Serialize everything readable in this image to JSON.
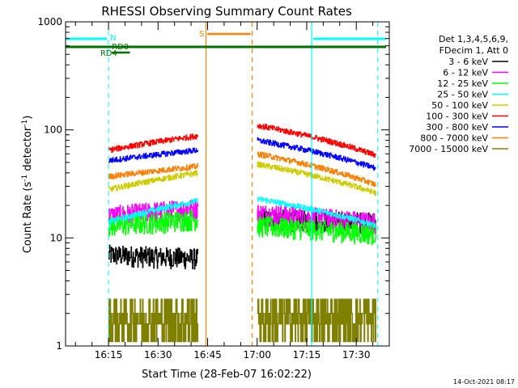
{
  "chart_data": {
    "type": "line",
    "title": "RHESSI Observing Summary Count Rates",
    "xlabel": "Start Time (28-Feb-07 16:02:22)",
    "ylabel_main": "Count Rate (s",
    "ylabel_exp1": "-1",
    "ylabel_mid": " detector",
    "ylabel_exp2": "-1",
    "ylabel_end": ")",
    "y_scale": "log",
    "ylim": [
      1,
      1000
    ],
    "xlim_minutes": [
      0,
      98
    ],
    "x_ticks": [
      {
        "t": 13,
        "label": "16:15"
      },
      {
        "t": 28,
        "label": "16:30"
      },
      {
        "t": 43,
        "label": "16:45"
      },
      {
        "t": 58,
        "label": "17:00"
      },
      {
        "t": 73,
        "label": "17:15"
      },
      {
        "t": 88,
        "label": "17:30"
      }
    ],
    "y_ticks": [
      {
        "v": 1,
        "label": "1"
      },
      {
        "v": 10,
        "label": "10"
      },
      {
        "v": 100,
        "label": "100"
      },
      {
        "v": 1000,
        "label": "1000"
      }
    ],
    "legend_header": [
      "Det 1,3,4,5,6,9,",
      "FDecim 1, Att 0"
    ],
    "series": [
      {
        "name": "3 - 6 keV",
        "color": "#000000"
      },
      {
        "name": "6 - 12 keV",
        "color": "#ff00ff"
      },
      {
        "name": "12 - 25 keV",
        "color": "#00ff00"
      },
      {
        "name": "25 - 50 keV",
        "color": "#00ffff"
      },
      {
        "name": "50 - 100 keV",
        "color": "#cccc00"
      },
      {
        "name": "100 - 300 keV",
        "color": "#ff0000"
      },
      {
        "name": "300 - 800 keV",
        "color": "#0000ff"
      },
      {
        "name": "800 - 7000 keV",
        "color": "#ff8000"
      },
      {
        "name": "7000 - 15000 keV",
        "color": "#808000"
      }
    ],
    "segments": [
      [
        13,
        40
      ],
      [
        58,
        94
      ]
    ],
    "night_intervals": [
      [
        42.5,
        56.5
      ]
    ],
    "saa_interval": [
      74.5,
      94.5
    ],
    "annotations": [
      {
        "label": "N",
        "color": "#00ffff"
      },
      {
        "label": "RD0",
        "color": "#007000"
      },
      {
        "label": "RD4",
        "color": "#007000"
      },
      {
        "label": "S",
        "color": "#ff8000"
      }
    ],
    "timestamp": "14-Oct-2021 08:17"
  }
}
